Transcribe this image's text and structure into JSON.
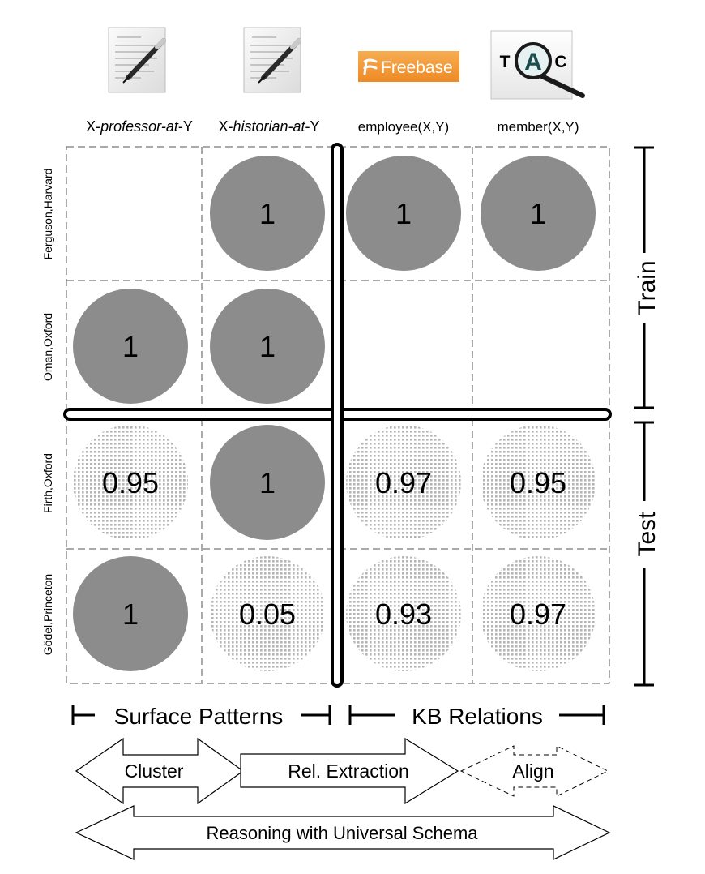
{
  "columns": [
    {
      "icon": "document-pen-icon",
      "pre": "X-",
      "italic": "professor-at",
      "post": "-Y"
    },
    {
      "icon": "document-pen-icon",
      "pre": "X-",
      "italic": "historian-at",
      "post": "-Y"
    },
    {
      "icon": "freebase-logo-icon",
      "logo_text": "Freebase",
      "label": "employee(X,Y)"
    },
    {
      "icon": "tac-magnifier-icon",
      "logo_letters": [
        "T",
        "A",
        "C"
      ],
      "label": "member(X,Y)"
    }
  ],
  "rows": [
    "Ferguson,Harvard",
    "Oman,Oxford",
    "Firth,Oxford",
    "Gödel,Princeton"
  ],
  "cells": [
    [
      null,
      {
        "v": "1",
        "k": "observed"
      },
      {
        "v": "1",
        "k": "observed"
      },
      {
        "v": "1",
        "k": "observed"
      }
    ],
    [
      {
        "v": "1",
        "k": "observed"
      },
      {
        "v": "1",
        "k": "observed"
      },
      null,
      null
    ],
    [
      {
        "v": "0.95",
        "k": "predicted"
      },
      {
        "v": "1",
        "k": "observed"
      },
      {
        "v": "0.97",
        "k": "predicted"
      },
      {
        "v": "0.95",
        "k": "predicted"
      }
    ],
    [
      {
        "v": "1",
        "k": "observed"
      },
      {
        "v": "0.05",
        "k": "predicted"
      },
      {
        "v": "0.93",
        "k": "predicted"
      },
      {
        "v": "0.97",
        "k": "predicted"
      }
    ]
  ],
  "brackets": {
    "train": "Train",
    "test": "Test"
  },
  "groups": {
    "surface": "Surface Patterns",
    "kb": "KB Relations"
  },
  "arrows": {
    "cluster": "Cluster",
    "relext": "Rel. Extraction",
    "align": "Align",
    "reasoning": "Reasoning with Universal Schema"
  },
  "colors": {
    "observed": "#8c8c8c",
    "predicted_dot": "#bdbdbd",
    "grid": "#555555",
    "freebase": "#f39a3a"
  }
}
